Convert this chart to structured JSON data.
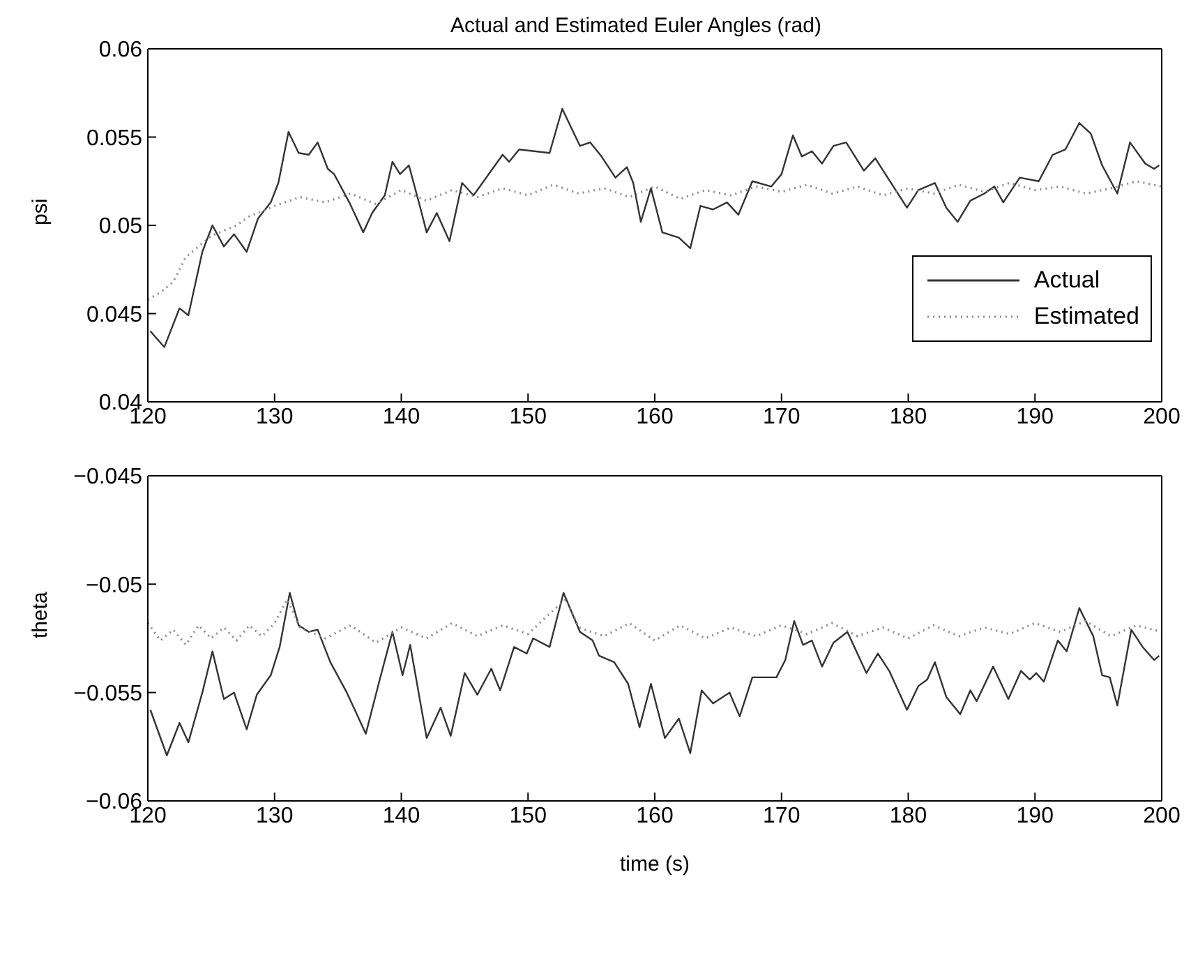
{
  "chart_data": [
    {
      "type": "line",
      "title": "Actual and Estimated Euler Angles (rad)",
      "ylabel": "psi",
      "xlim": [
        120,
        200
      ],
      "xticks": [
        120,
        130,
        140,
        150,
        160,
        170,
        180,
        190,
        200
      ],
      "ylim": [
        0.04,
        0.06
      ],
      "yticks": [
        0.04,
        0.045,
        0.05,
        0.055,
        0.06
      ],
      "legend": "right",
      "series": [
        {
          "name": "Actual",
          "color": "#333333",
          "line_style": "solid",
          "x": [
            120.2,
            121.3,
            122.5,
            123.2,
            124.3,
            125.1,
            126.0,
            126.8,
            127.8,
            128.7,
            129.7,
            130.3,
            131.1,
            131.9,
            132.7,
            133.4,
            134.2,
            134.7,
            135.9,
            137.0,
            137.7,
            138.7,
            139.3,
            139.9,
            140.6,
            141.5,
            142.0,
            142.8,
            143.8,
            144.8,
            145.7,
            147.2,
            148.0,
            148.5,
            149.3,
            151.7,
            152.7,
            154.1,
            154.9,
            155.8,
            156.9,
            157.8,
            158.3,
            158.9,
            159.7,
            160.6,
            161.9,
            162.8,
            163.6,
            164.6,
            165.7,
            166.6,
            167.7,
            169.2,
            170.0,
            170.9,
            171.6,
            172.4,
            173.2,
            174.1,
            175.1,
            176.5,
            177.4,
            178.2,
            179.9,
            180.8,
            182.1,
            183.0,
            183.9,
            184.9,
            186.0,
            186.8,
            187.5,
            188.8,
            190.3,
            191.4,
            192.4,
            193.5,
            194.4,
            195.3,
            196.5,
            197.5,
            198.7,
            199.4,
            199.8
          ],
          "values": [
            0.044,
            0.0431,
            0.0453,
            0.0449,
            0.0485,
            0.05,
            0.0488,
            0.0495,
            0.0485,
            0.0504,
            0.0513,
            0.0524,
            0.0553,
            0.0541,
            0.054,
            0.0547,
            0.0532,
            0.0529,
            0.0513,
            0.0496,
            0.0507,
            0.0517,
            0.0536,
            0.0529,
            0.0534,
            0.051,
            0.0496,
            0.0507,
            0.0491,
            0.0524,
            0.0517,
            0.0532,
            0.054,
            0.0536,
            0.0543,
            0.0541,
            0.0566,
            0.0545,
            0.0547,
            0.0539,
            0.0527,
            0.0533,
            0.0524,
            0.0502,
            0.0521,
            0.0496,
            0.0493,
            0.0487,
            0.0511,
            0.0509,
            0.0513,
            0.0506,
            0.0525,
            0.0522,
            0.0529,
            0.0551,
            0.0539,
            0.0542,
            0.0535,
            0.0545,
            0.0547,
            0.0531,
            0.0538,
            0.0529,
            0.051,
            0.052,
            0.0524,
            0.051,
            0.0502,
            0.0514,
            0.0518,
            0.0522,
            0.0513,
            0.0527,
            0.0525,
            0.054,
            0.0543,
            0.0558,
            0.0552,
            0.0534,
            0.0518,
            0.0547,
            0.0535,
            0.0532,
            0.0534
          ]
        },
        {
          "name": "Estimated",
          "color": "#8a8a8a",
          "line_style": "dotted",
          "x": [
            120,
            121,
            122,
            123,
            124,
            125,
            126,
            127,
            128,
            129,
            130,
            132,
            134,
            136,
            138,
            140,
            142,
            144,
            146,
            148,
            150,
            152,
            154,
            156,
            158,
            160,
            162,
            164,
            166,
            168,
            170,
            172,
            174,
            176,
            178,
            180,
            182,
            184,
            186,
            188,
            190,
            192,
            194,
            196,
            198,
            200
          ],
          "values": [
            0.0458,
            0.0462,
            0.0468,
            0.0482,
            0.0488,
            0.0494,
            0.0497,
            0.05,
            0.0505,
            0.0508,
            0.0511,
            0.0516,
            0.0513,
            0.0518,
            0.0512,
            0.052,
            0.0514,
            0.052,
            0.0516,
            0.0521,
            0.0517,
            0.0523,
            0.0518,
            0.0521,
            0.0516,
            0.0522,
            0.0515,
            0.052,
            0.0517,
            0.0522,
            0.0519,
            0.0523,
            0.0518,
            0.0522,
            0.0517,
            0.0521,
            0.0518,
            0.0523,
            0.0519,
            0.0524,
            0.052,
            0.0522,
            0.0518,
            0.0521,
            0.0525,
            0.0522
          ]
        }
      ]
    },
    {
      "type": "line",
      "xlabel": "time (s)",
      "ylabel": "theta",
      "xlim": [
        120,
        200
      ],
      "xticks": [
        120,
        130,
        140,
        150,
        160,
        170,
        180,
        190,
        200
      ],
      "ylim": [
        -0.06,
        -0.045
      ],
      "yticks": [
        -0.06,
        -0.055,
        -0.05,
        -0.045
      ],
      "legend": false,
      "series": [
        {
          "color": "#333333",
          "line_style": "solid",
          "x": [
            120.2,
            121.5,
            122.5,
            123.2,
            124.3,
            125.1,
            126.0,
            126.8,
            127.8,
            128.6,
            129.7,
            130.4,
            131.2,
            131.9,
            132.7,
            133.4,
            134.4,
            135.7,
            137.2,
            138.3,
            139.3,
            140.1,
            140.7,
            142.0,
            143.1,
            143.9,
            145.0,
            146.0,
            147.1,
            147.8,
            148.9,
            149.9,
            150.4,
            151.7,
            152.8,
            154.1,
            155.1,
            155.6,
            156.8,
            157.9,
            158.8,
            159.7,
            160.8,
            161.9,
            162.8,
            163.7,
            164.6,
            165.9,
            166.7,
            167.7,
            169.6,
            170.3,
            171.0,
            171.7,
            172.4,
            173.2,
            174.1,
            175.2,
            176.7,
            177.6,
            178.5,
            179.9,
            180.8,
            181.5,
            182.1,
            183.0,
            184.1,
            184.9,
            185.4,
            186.7,
            187.9,
            188.9,
            189.6,
            190.1,
            190.7,
            191.8,
            192.5,
            193.5,
            194.6,
            195.3,
            195.9,
            196.5,
            197.6,
            198.5,
            199.4,
            199.8
          ],
          "values": [
            -0.0558,
            -0.0579,
            -0.0564,
            -0.0573,
            -0.055,
            -0.0531,
            -0.0553,
            -0.055,
            -0.0567,
            -0.0551,
            -0.0542,
            -0.0529,
            -0.0504,
            -0.0519,
            -0.0522,
            -0.0521,
            -0.0536,
            -0.055,
            -0.0569,
            -0.0544,
            -0.0522,
            -0.0542,
            -0.0528,
            -0.0571,
            -0.0557,
            -0.057,
            -0.0541,
            -0.0551,
            -0.0539,
            -0.0549,
            -0.0529,
            -0.0532,
            -0.0525,
            -0.0529,
            -0.0504,
            -0.0522,
            -0.0526,
            -0.0533,
            -0.0536,
            -0.0546,
            -0.0566,
            -0.0546,
            -0.0571,
            -0.0562,
            -0.0578,
            -0.0549,
            -0.0555,
            -0.055,
            -0.0561,
            -0.0543,
            -0.0543,
            -0.0535,
            -0.0517,
            -0.0528,
            -0.0526,
            -0.0538,
            -0.0527,
            -0.0522,
            -0.0541,
            -0.0532,
            -0.054,
            -0.0558,
            -0.0547,
            -0.0544,
            -0.0536,
            -0.0552,
            -0.056,
            -0.0549,
            -0.0554,
            -0.0538,
            -0.0553,
            -0.054,
            -0.0544,
            -0.0541,
            -0.0545,
            -0.0526,
            -0.0531,
            -0.0511,
            -0.0524,
            -0.0542,
            -0.0543,
            -0.0556,
            -0.0521,
            -0.0529,
            -0.0535,
            -0.0533
          ]
        },
        {
          "color": "#8a8a8a",
          "line_style": "dotted",
          "x": [
            120,
            121,
            122,
            123,
            124,
            125,
            126,
            127,
            128,
            129,
            130,
            131,
            132,
            134,
            136,
            138,
            140,
            142,
            144,
            146,
            148,
            150,
            152,
            153,
            154,
            156,
            158,
            160,
            162,
            164,
            166,
            168,
            170,
            172,
            174,
            176,
            178,
            180,
            182,
            184,
            186,
            188,
            190,
            192,
            194,
            196,
            198,
            200
          ],
          "values": [
            -0.0518,
            -0.0526,
            -0.0521,
            -0.0528,
            -0.0519,
            -0.0525,
            -0.052,
            -0.0526,
            -0.0519,
            -0.0524,
            -0.0518,
            -0.0507,
            -0.052,
            -0.0525,
            -0.0519,
            -0.0527,
            -0.052,
            -0.0525,
            -0.0518,
            -0.0524,
            -0.0519,
            -0.0523,
            -0.0512,
            -0.0507,
            -0.052,
            -0.0524,
            -0.0518,
            -0.0526,
            -0.0519,
            -0.0525,
            -0.052,
            -0.0524,
            -0.0519,
            -0.0523,
            -0.0518,
            -0.0524,
            -0.052,
            -0.0525,
            -0.0519,
            -0.0524,
            -0.052,
            -0.0523,
            -0.0518,
            -0.0522,
            -0.0517,
            -0.0524,
            -0.0519,
            -0.0522
          ]
        }
      ]
    }
  ]
}
